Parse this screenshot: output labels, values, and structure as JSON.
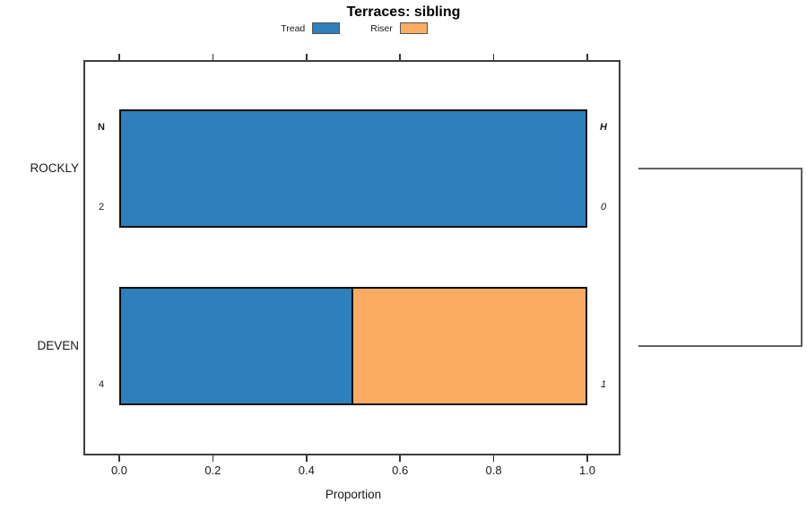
{
  "chart_data": {
    "type": "bar",
    "orientation": "horizontal",
    "stacked": true,
    "title": "Terraces: sibling",
    "xlabel": "Proportion",
    "categories": [
      "ROCKLY",
      "DEVEN"
    ],
    "series": [
      {
        "name": "Tread",
        "color": "#2E80BB",
        "values": [
          1.0,
          0.5
        ]
      },
      {
        "name": "Riser",
        "color": "#FBAC63",
        "values": [
          0.0,
          0.5
        ]
      }
    ],
    "xlim": [
      0,
      1
    ],
    "xticks": [
      {
        "label": "0.0",
        "value": 0.0
      },
      {
        "label": "0.2",
        "value": 0.2
      },
      {
        "label": "0.4",
        "value": 0.4
      },
      {
        "label": "0.6",
        "value": 0.6
      },
      {
        "label": "0.8",
        "value": 0.8
      },
      {
        "label": "1.0",
        "value": 1.0
      }
    ],
    "grid": false,
    "legend_position": "top",
    "annotations": {
      "left_header": "N",
      "right_header": "H",
      "rows": [
        {
          "category": "ROCKLY",
          "n": "2",
          "h": "0"
        },
        {
          "category": "DEVEN",
          "n": "4",
          "h": "1"
        }
      ]
    },
    "bracket": {
      "connects": [
        "ROCKLY",
        "DEVEN"
      ],
      "side": "right"
    }
  },
  "colors": {
    "tread": "#2E80BB",
    "riser": "#FBAC63",
    "axis": "#3d3d3d",
    "bar_border": "#0d0d0d",
    "bracket": "#4a4a4a"
  }
}
